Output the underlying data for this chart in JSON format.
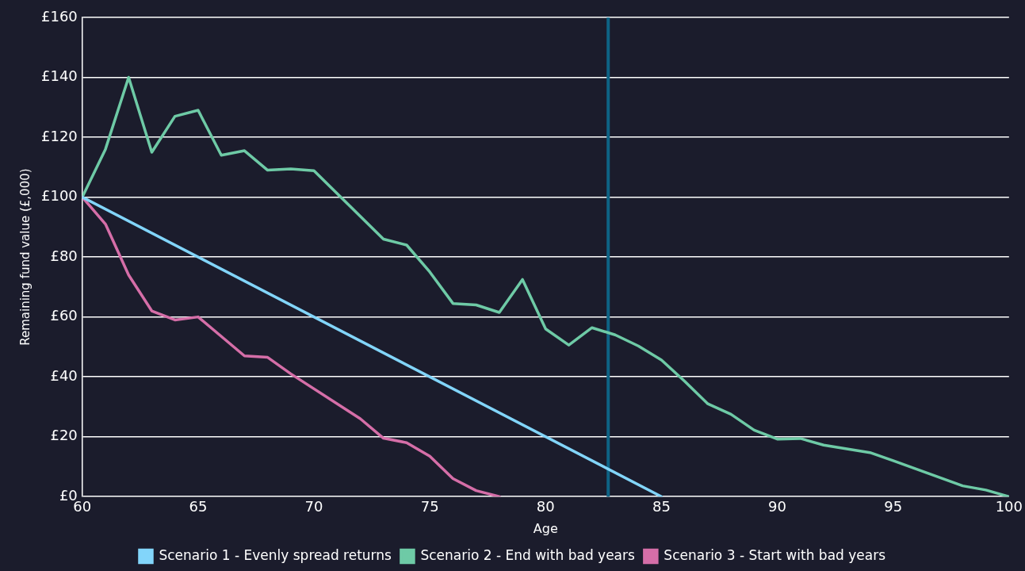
{
  "chart_data": {
    "type": "line",
    "xlabel": "Age",
    "ylabel": "Remaining fund value (£,000)",
    "xlim": [
      60,
      100
    ],
    "xticks": [
      60,
      65,
      70,
      75,
      80,
      85,
      90,
      95,
      100
    ],
    "ylim": [
      0,
      160
    ],
    "yticks": [
      {
        "value": 0,
        "label": "£0"
      },
      {
        "value": 20,
        "label": "£20"
      },
      {
        "value": 40,
        "label": "£40"
      },
      {
        "value": 60,
        "label": "£60"
      },
      {
        "value": 80,
        "label": "£80"
      },
      {
        "value": 100,
        "label": "£100"
      },
      {
        "value": 120,
        "label": "£120"
      },
      {
        "value": 140,
        "label": "£140"
      },
      {
        "value": 160,
        "label": "£160"
      }
    ],
    "grid": "y",
    "legend": "bottom",
    "marker": "none",
    "line_style": "solid",
    "ref_lines": [
      {
        "axis": "x",
        "value": 82.7,
        "color": "#0e6385"
      }
    ],
    "series": [
      {
        "name": "Scenario 1 - Evenly spread returns",
        "color": "#82d5fa",
        "x": [
          60,
          85
        ],
        "values": [
          100,
          0
        ]
      },
      {
        "name": "Scenario 2 - End with bad years",
        "color": "#6ecaa6",
        "x": [
          60,
          61,
          62,
          63,
          64,
          65,
          66,
          67,
          68,
          69,
          70,
          73,
          74,
          75,
          76,
          77,
          78,
          79,
          80,
          81,
          82,
          83,
          84,
          85,
          86,
          87,
          88,
          89,
          90,
          91,
          92,
          94,
          95,
          98,
          99,
          100
        ],
        "values": [
          100,
          116,
          140,
          115,
          127,
          129,
          114,
          115.5,
          109,
          109.4,
          108.8,
          86,
          84,
          75,
          64.5,
          64,
          61.5,
          72.5,
          56,
          50.6,
          56.4,
          54,
          50.3,
          45.6,
          38.5,
          31,
          27.5,
          22.2,
          19.2,
          19.4,
          17.2,
          14.7,
          12,
          3.6,
          2.2,
          0
        ]
      },
      {
        "name": "Scenario 3 - Start with bad years",
        "color": "#d56ea8",
        "x": [
          60,
          61,
          62,
          63,
          64,
          65,
          67,
          68,
          69,
          72,
          73,
          74,
          75,
          76,
          77,
          78
        ],
        "values": [
          100,
          91,
          74,
          62,
          59,
          60,
          47,
          46.5,
          41,
          26,
          19.5,
          18,
          13.5,
          6,
          2,
          0
        ]
      }
    ]
  }
}
